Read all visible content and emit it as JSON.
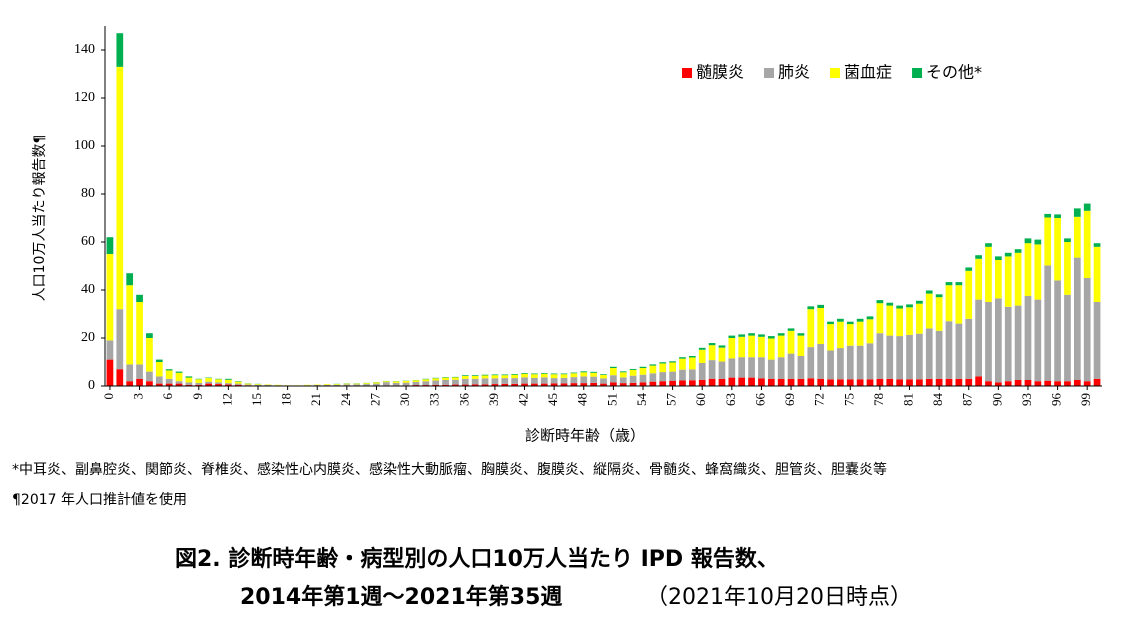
{
  "chart_data": {
    "type": "stacked_bar",
    "y_label": "人口10万人当たり報告数¶",
    "x_label": "診断時年齢（歳）",
    "footnotes": [
      "*中耳炎、副鼻腔炎、関節炎、脊椎炎、感染性心内膜炎、感染性大動脈瘤、胸膜炎、腹膜炎、縦隔炎、骨髄炎、蜂窩織炎、胆管炎、胆嚢炎等",
      "¶2017 年人口推計値を使用"
    ],
    "caption": [
      "図2. 診断時年齢・病型別の人口10万人当たり IPD 報告数、",
      "2014年第1週～2021年第35週",
      "（2021年10月20日時点）"
    ],
    "categories": [
      "0",
      null,
      null,
      "3",
      null,
      null,
      "6",
      null,
      null,
      "9",
      null,
      null,
      "12",
      null,
      null,
      "15",
      null,
      null,
      "18",
      null,
      null,
      "21",
      null,
      null,
      "24",
      null,
      null,
      "27",
      null,
      null,
      "30",
      null,
      null,
      "33",
      null,
      null,
      "36",
      null,
      null,
      "39",
      null,
      null,
      "42",
      null,
      null,
      "45",
      null,
      null,
      "48",
      null,
      null,
      "51",
      null,
      null,
      "54",
      null,
      null,
      "57",
      null,
      null,
      "60",
      null,
      null,
      "63",
      null,
      null,
      "66",
      null,
      null,
      "69",
      null,
      null,
      "72",
      null,
      null,
      "75",
      null,
      null,
      "78",
      null,
      null,
      "81",
      null,
      null,
      "84",
      null,
      null,
      "87",
      null,
      null,
      "90",
      null,
      null,
      "93",
      null,
      null,
      "96",
      null,
      null,
      "99",
      null
    ],
    "series": [
      {
        "name": "髄膜炎",
        "color": "#ff0000",
        "values": [
          11,
          7,
          2,
          3,
          2,
          1,
          1,
          1,
          0.5,
          0.5,
          1,
          0.8,
          0.6,
          0.5,
          0.3,
          0.2,
          0.2,
          0.1,
          0.1,
          0.1,
          0.1,
          0.1,
          0.1,
          0.1,
          0.2,
          0.2,
          0.2,
          0.2,
          0.3,
          0.3,
          0.3,
          0.4,
          0.4,
          0.5,
          0.5,
          0.6,
          0.6,
          0.7,
          0.7,
          0.8,
          0.9,
          0.9,
          1,
          1,
          1,
          1.1,
          1.1,
          1.2,
          1.2,
          1.3,
          1,
          1.5,
          1.2,
          1.3,
          1.5,
          1.8,
          2,
          2.2,
          2.3,
          2.4,
          2.6,
          3,
          3,
          3.5,
          3.5,
          3.5,
          3.2,
          3,
          3,
          3,
          3,
          3.2,
          3,
          2.8,
          2.8,
          2.8,
          2.8,
          2.8,
          3,
          3,
          2.8,
          2.8,
          2.8,
          3,
          3,
          3,
          3,
          3,
          4,
          2,
          1.5,
          2,
          2.5,
          2.5,
          2,
          2.2,
          2,
          2,
          2.5,
          2,
          3
        ]
      },
      {
        "name": "肺炎",
        "color": "#a6a6a6",
        "values": [
          8,
          25,
          7,
          6,
          4,
          3,
          2,
          1,
          1,
          0.8,
          0.8,
          0.7,
          0.6,
          0.5,
          0.3,
          0.3,
          0.3,
          0.2,
          0.1,
          0.1,
          0.2,
          0.3,
          0.4,
          0.4,
          0.5,
          0.5,
          0.6,
          0.8,
          1.3,
          1,
          1.1,
          1.3,
          1.6,
          1.8,
          2,
          2,
          2.4,
          2.3,
          2.5,
          2.4,
          2.4,
          2.4,
          2.6,
          2.4,
          2.6,
          2.2,
          2.3,
          2.5,
          2.8,
          2.6,
          2.2,
          3,
          2.4,
          3,
          3.2,
          3.5,
          3.8,
          3.8,
          4.5,
          4.5,
          7,
          7.8,
          7.2,
          8,
          8.5,
          8.5,
          8.8,
          8,
          9,
          10.5,
          9.5,
          13,
          14.5,
          12,
          13,
          14,
          14,
          15,
          19,
          18,
          18,
          18.5,
          19,
          21,
          20,
          24,
          23,
          25,
          32,
          33,
          35,
          31,
          31,
          35,
          34,
          48,
          42,
          36,
          51,
          43,
          32
        ]
      },
      {
        "name": "菌血症",
        "color": "#ffff00",
        "values": [
          36,
          101,
          33,
          26,
          14,
          6,
          3.5,
          3.5,
          2,
          1.5,
          1.5,
          1.3,
          1.4,
          0.8,
          0.4,
          0.3,
          0.2,
          0.2,
          0.1,
          0.1,
          0.2,
          0.2,
          0.3,
          0.3,
          0.3,
          0.3,
          0.4,
          0.5,
          0.4,
          0.6,
          0.7,
          0.7,
          0.8,
          0.9,
          1,
          1,
          1.2,
          1.2,
          1.2,
          1.3,
          1.2,
          1.4,
          1.5,
          1.5,
          1.5,
          1.6,
          1.5,
          1.6,
          1.7,
          1.6,
          1.4,
          3,
          2.1,
          2.4,
          2.8,
          3.2,
          3.6,
          3.8,
          4.6,
          5,
          5.5,
          6.2,
          5.8,
          8.5,
          8.5,
          9,
          8.5,
          8.8,
          9,
          9.5,
          8.5,
          15.8,
          15,
          11,
          11,
          9,
          10,
          10,
          12.5,
          12.5,
          11.5,
          11.5,
          12.5,
          14.5,
          14,
          15,
          16,
          20,
          17,
          23,
          16,
          21,
          22,
          22,
          23,
          20,
          26,
          22,
          17,
          28,
          23
        ]
      },
      {
        "name": "その他*",
        "color": "#00b050",
        "values": [
          7,
          14,
          5,
          3,
          2,
          1,
          0.5,
          0.5,
          0.5,
          0.2,
          0.2,
          0.2,
          0.4,
          0.2,
          0.1,
          0.1,
          0,
          0,
          0,
          0,
          0,
          0,
          0,
          0.1,
          0.1,
          0.1,
          0.1,
          0.1,
          0.1,
          0.1,
          0.1,
          0.1,
          0.2,
          0.2,
          0.2,
          0.2,
          0.3,
          0.3,
          0.3,
          0.3,
          0.3,
          0.3,
          0.3,
          0.3,
          0.3,
          0.3,
          0.3,
          0.3,
          0.4,
          0.4,
          0.3,
          0.5,
          0.4,
          0.4,
          0.5,
          0.5,
          0.5,
          0.5,
          0.6,
          0.6,
          0.8,
          0.9,
          0.9,
          1,
          1,
          1,
          1,
          1,
          1,
          1,
          1,
          1.2,
          1.3,
          1,
          1.2,
          1,
          1.2,
          1.2,
          1.3,
          1.2,
          1.2,
          1.2,
          1.2,
          1.3,
          1.2,
          1.3,
          1.3,
          1.4,
          1.5,
          1.5,
          1.5,
          1.5,
          1.5,
          2,
          2,
          1.5,
          1.5,
          1.5,
          3.5,
          3,
          1.5
        ]
      }
    ],
    "ylim": [
      0,
      150
    ],
    "yticks": [
      0,
      20,
      40,
      60,
      80,
      100,
      120,
      140
    ],
    "legend": "upper right"
  }
}
